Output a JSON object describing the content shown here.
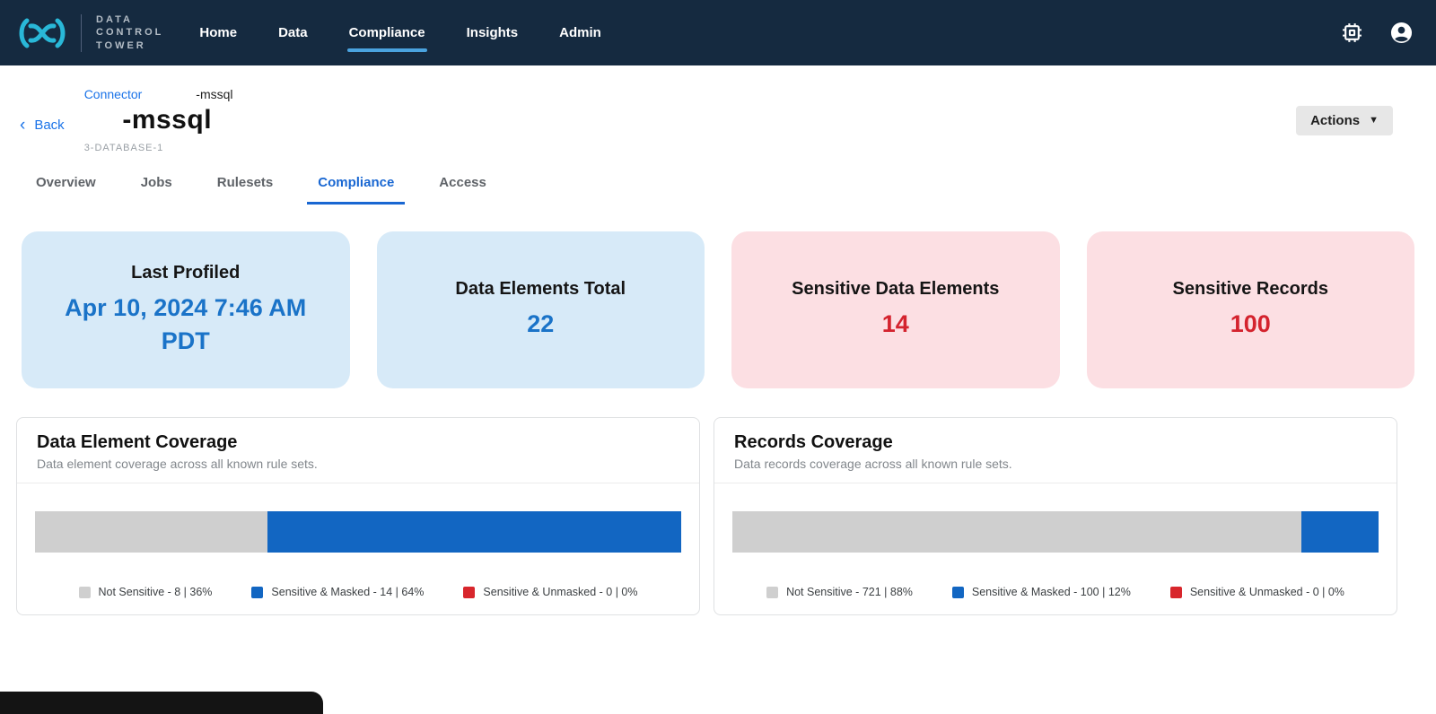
{
  "colors": {
    "navbar_bg": "#152a40",
    "logo_cyan": "#29b8d8",
    "nav_active_underline": "#4aa3df",
    "link_blue": "#1a73e8",
    "tab_active_blue": "#1967d2",
    "card_info_bg": "#d7eaf8",
    "card_info_value": "#1a73c8",
    "card_danger_bg": "#fcdfe3",
    "card_danger_value": "#d4232e",
    "bar_gray": "#cfcfcf",
    "bar_blue": "#1266c2",
    "bar_red": "#d8262c"
  },
  "navbar": {
    "brand_lines": [
      "DATA",
      "CONTROL",
      "TOWER"
    ],
    "items": [
      {
        "label": "Home",
        "active": false
      },
      {
        "label": "Data",
        "active": false
      },
      {
        "label": "Compliance",
        "active": true
      },
      {
        "label": "Insights",
        "active": false
      },
      {
        "label": "Admin",
        "active": false
      }
    ],
    "icons": [
      "chip-icon",
      "account-icon"
    ]
  },
  "header": {
    "back_label": "Back",
    "breadcrumb": {
      "link": "Connector",
      "current": "-mssql"
    },
    "title": "-mssql",
    "subtitle": "3-DATABASE-1",
    "actions_label": "Actions"
  },
  "tabs": [
    {
      "label": "Overview",
      "active": false
    },
    {
      "label": "Jobs",
      "active": false
    },
    {
      "label": "Rulesets",
      "active": false
    },
    {
      "label": "Compliance",
      "active": true
    },
    {
      "label": "Access",
      "active": false
    }
  ],
  "stat_cards": [
    {
      "title": "Last Profiled",
      "value": "Apr 10, 2024 7:46 AM PDT",
      "theme": "info"
    },
    {
      "title": "Data Elements Total",
      "value": "22",
      "theme": "info"
    },
    {
      "title": "Sensitive Data Elements",
      "value": "14",
      "theme": "danger"
    },
    {
      "title": "Sensitive Records",
      "value": "100",
      "theme": "danger"
    }
  ],
  "chart_data": [
    {
      "type": "bar",
      "orientation": "horizontal-stacked",
      "title": "Data Element Coverage",
      "subtitle": "Data element coverage across all known rule sets.",
      "legend_position": "bottom",
      "segments": [
        {
          "label": "Not Sensitive",
          "count": 8,
          "percent": 36,
          "color": "#cfcfcf"
        },
        {
          "label": "Sensitive & Masked",
          "count": 14,
          "percent": 64,
          "color": "#1266c2"
        },
        {
          "label": "Sensitive & Unmasked",
          "count": 0,
          "percent": 0,
          "color": "#d8262c"
        }
      ]
    },
    {
      "type": "bar",
      "orientation": "horizontal-stacked",
      "title": "Records Coverage",
      "subtitle": "Data records coverage across all known rule sets.",
      "legend_position": "bottom",
      "segments": [
        {
          "label": "Not Sensitive",
          "count": 721,
          "percent": 88,
          "color": "#cfcfcf"
        },
        {
          "label": "Sensitive & Masked",
          "count": 100,
          "percent": 12,
          "color": "#1266c2"
        },
        {
          "label": "Sensitive & Unmasked",
          "count": 0,
          "percent": 0,
          "color": "#d8262c"
        }
      ]
    }
  ]
}
